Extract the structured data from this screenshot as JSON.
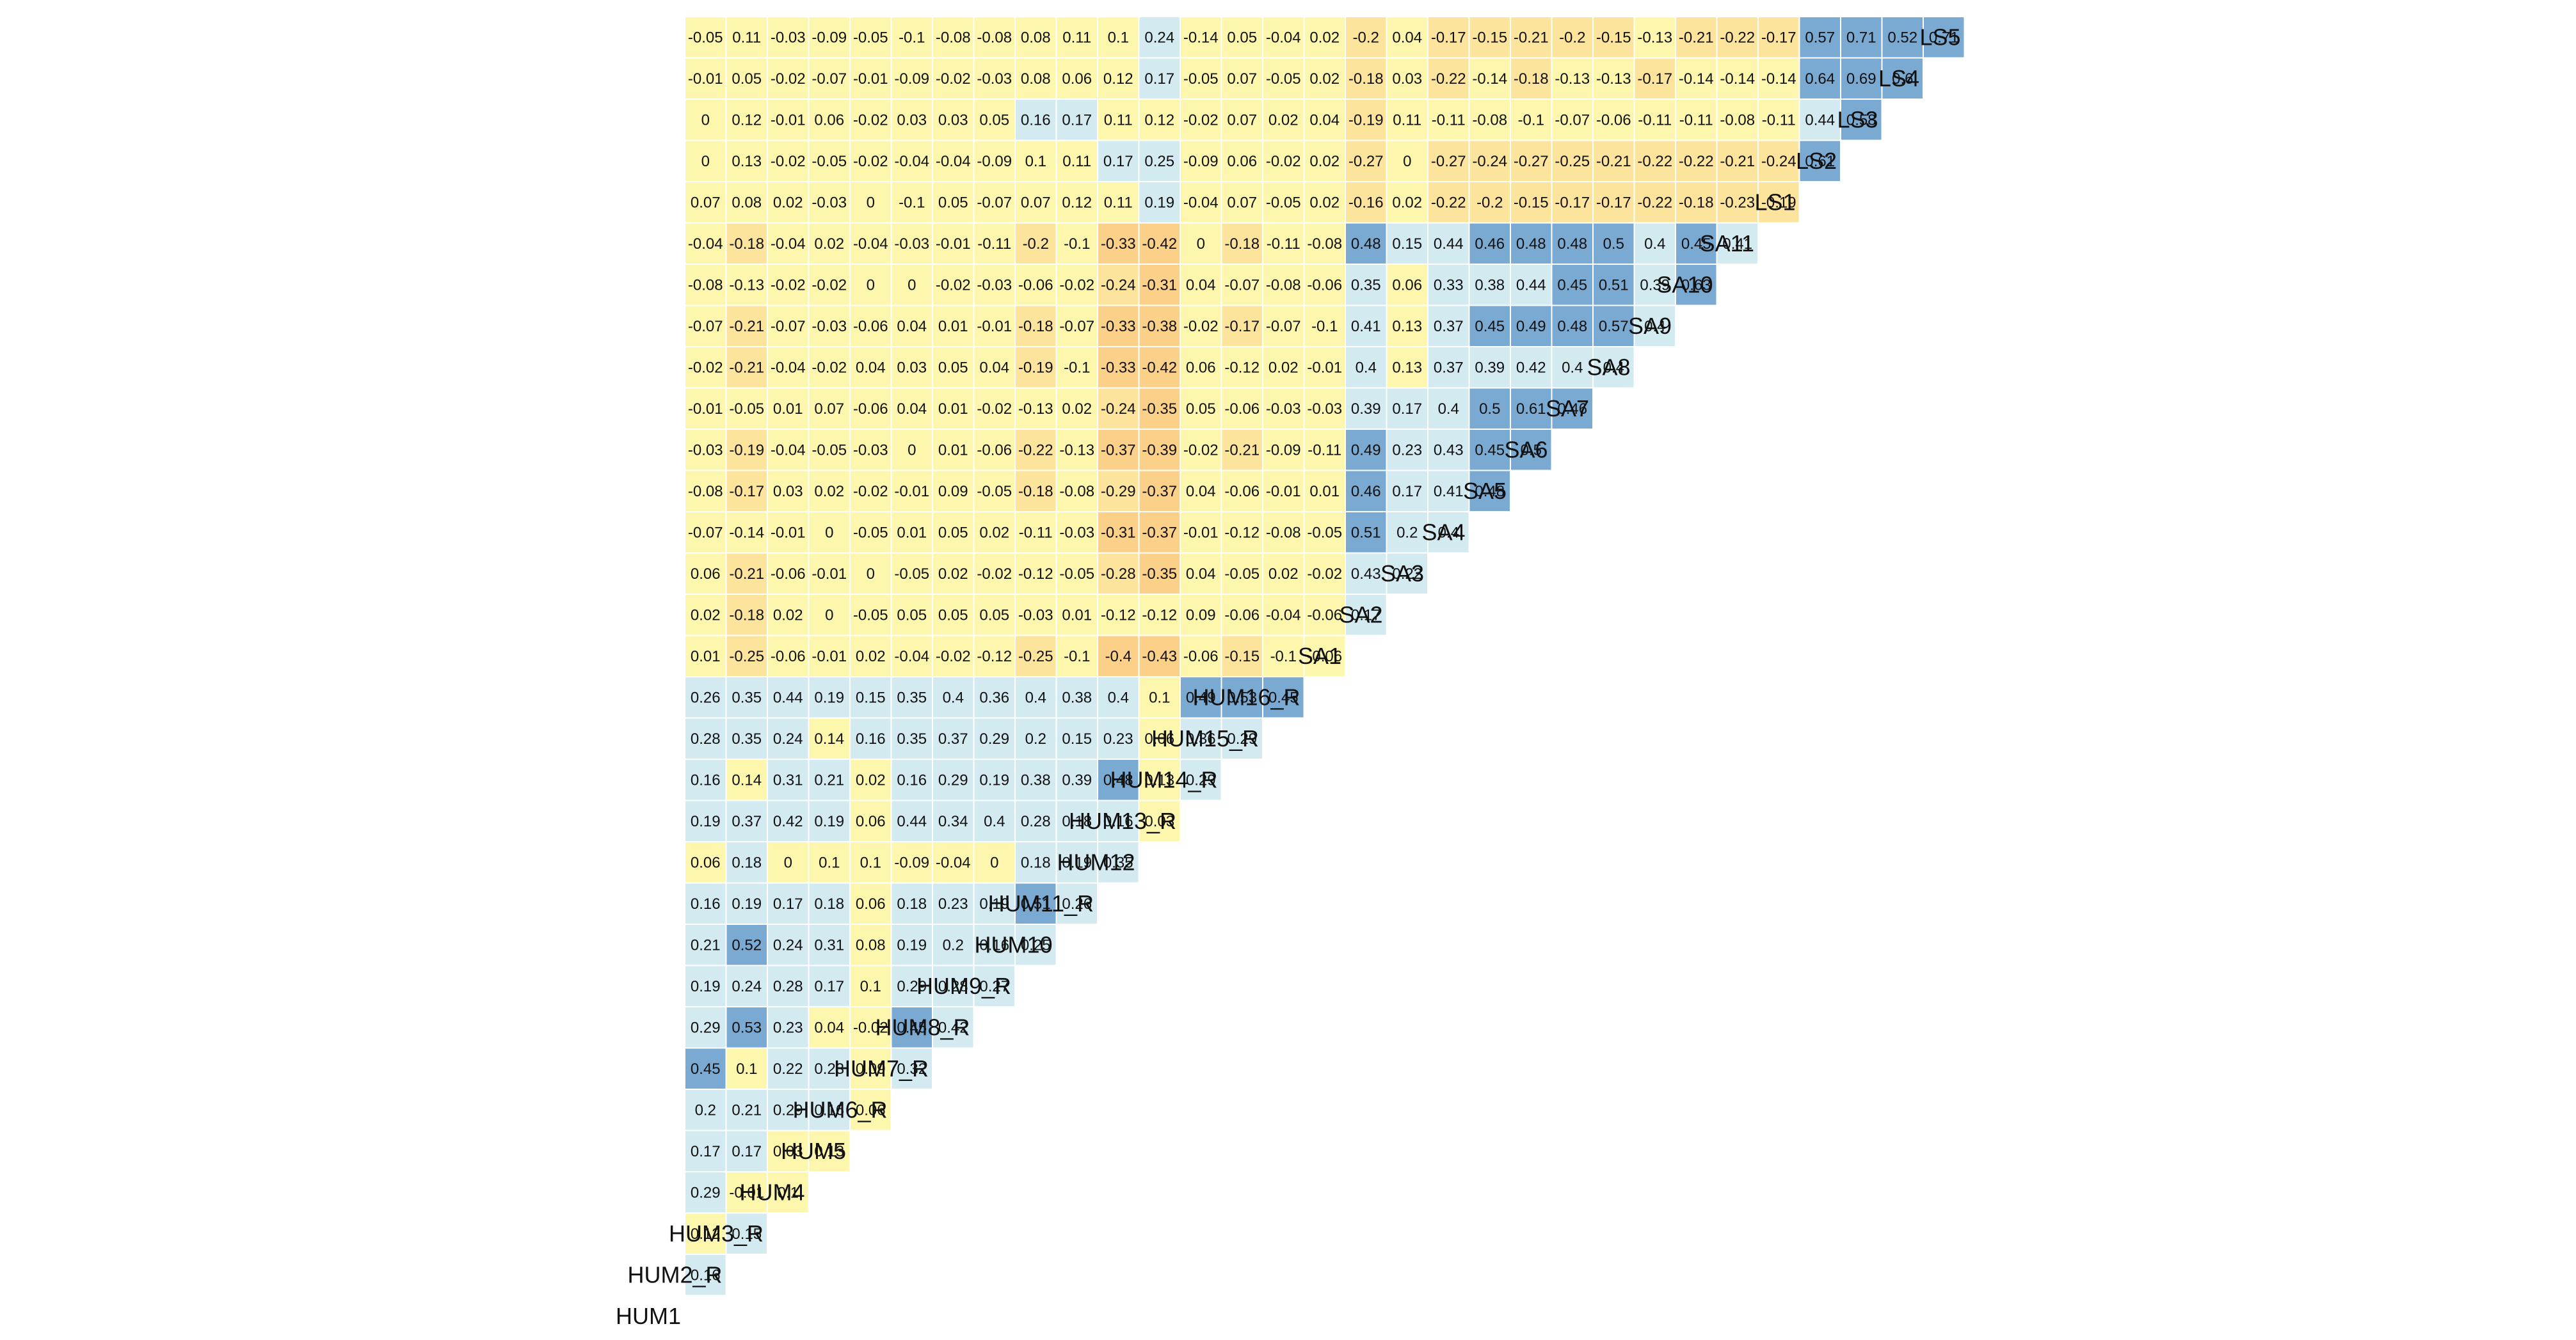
{
  "chart_data": {
    "type": "heatmap",
    "variables": [
      "HUM1",
      "HUM2_R",
      "HUM3_R",
      "HUM4",
      "HUM5",
      "HUM6_R",
      "HUM7_R",
      "HUM8_R",
      "HUM9_R",
      "HUM10",
      "HUM11_R",
      "HUM12",
      "HUM13_R",
      "HUM14_R",
      "HUM15_R",
      "HUM16_R",
      "SA1",
      "SA2",
      "SA3",
      "SA4",
      "SA5",
      "SA6",
      "SA7",
      "SA8",
      "SA9",
      "SA10",
      "SA11",
      "LS1",
      "LS2",
      "LS3",
      "LS4",
      "LS5"
    ],
    "lower_triangle": [
      [],
      [
        0.16
      ],
      [
        0.12,
        0.15
      ],
      [
        0.29,
        -0.01,
        0.1
      ],
      [
        0.17,
        0.17,
        0.03,
        0.13
      ],
      [
        0.2,
        0.21,
        0.29,
        0.16,
        0.06
      ],
      [
        0.45,
        0.1,
        0.22,
        0.23,
        0.09,
        0.32
      ],
      [
        0.29,
        0.53,
        0.23,
        0.04,
        -0.02,
        0.45,
        0.42
      ],
      [
        0.19,
        0.24,
        0.28,
        0.17,
        0.1,
        0.29,
        0.28,
        0.27
      ],
      [
        0.21,
        0.52,
        0.24,
        0.31,
        0.08,
        0.19,
        0.2,
        0.16,
        0.25
      ],
      [
        0.16,
        0.19,
        0.17,
        0.18,
        0.06,
        0.18,
        0.23,
        0.19,
        0.51,
        0.26
      ],
      [
        0.06,
        0.18,
        0,
        0.1,
        0.1,
        -0.09,
        -0.04,
        0,
        0.18,
        0.19,
        0.35
      ],
      [
        0.19,
        0.37,
        0.42,
        0.19,
        0.06,
        0.44,
        0.34,
        0.4,
        0.28,
        0.18,
        0.16,
        0.03
      ],
      [
        0.16,
        0.14,
        0.31,
        0.21,
        0.02,
        0.16,
        0.29,
        0.19,
        0.38,
        0.39,
        0.48,
        0.13,
        0.29
      ],
      [
        0.28,
        0.35,
        0.24,
        0.14,
        0.16,
        0.35,
        0.37,
        0.29,
        0.2,
        0.15,
        0.23,
        0.06,
        0.36,
        0.29
      ],
      [
        0.26,
        0.35,
        0.44,
        0.19,
        0.15,
        0.35,
        0.4,
        0.36,
        0.4,
        0.38,
        0.4,
        0.1,
        0.49,
        0.53,
        0.45
      ],
      [
        0.01,
        -0.25,
        -0.06,
        -0.01,
        0.02,
        -0.04,
        -0.02,
        -0.12,
        -0.25,
        -0.1,
        -0.4,
        -0.43,
        -0.06,
        -0.15,
        -0.1,
        -0.06
      ],
      [
        0.02,
        -0.18,
        0.02,
        0,
        -0.05,
        0.05,
        0.05,
        0.05,
        -0.03,
        0.01,
        -0.12,
        -0.12,
        0.09,
        -0.06,
        -0.04,
        -0.06,
        0.17
      ],
      [
        0.06,
        -0.21,
        -0.06,
        -0.01,
        0,
        -0.05,
        0.02,
        -0.02,
        -0.12,
        -0.05,
        -0.28,
        -0.35,
        0.04,
        -0.05,
        0.02,
        -0.02,
        0.43,
        0.22
      ],
      [
        -0.07,
        -0.14,
        -0.01,
        0,
        -0.05,
        0.01,
        0.05,
        0.02,
        -0.11,
        -0.03,
        -0.31,
        -0.37,
        -0.01,
        -0.12,
        -0.08,
        -0.05,
        0.51,
        0.2,
        0.4
      ],
      [
        -0.08,
        -0.17,
        0.03,
        0.02,
        -0.02,
        -0.01,
        0.09,
        -0.05,
        -0.18,
        -0.08,
        -0.29,
        -0.37,
        0.04,
        -0.06,
        -0.01,
        0.01,
        0.46,
        0.17,
        0.41,
        0.48
      ],
      [
        -0.03,
        -0.19,
        -0.04,
        -0.05,
        -0.03,
        0,
        0.01,
        -0.06,
        -0.22,
        -0.13,
        -0.37,
        -0.39,
        -0.02,
        -0.21,
        -0.09,
        -0.11,
        0.49,
        0.23,
        0.43,
        0.45,
        0.5
      ],
      [
        -0.01,
        -0.05,
        0.01,
        0.07,
        -0.06,
        0.04,
        0.01,
        -0.02,
        -0.13,
        0.02,
        -0.24,
        -0.35,
        0.05,
        -0.06,
        -0.03,
        -0.03,
        0.39,
        0.17,
        0.4,
        0.5,
        0.61,
        0.46
      ],
      [
        -0.02,
        -0.21,
        -0.04,
        -0.02,
        0.04,
        0.03,
        0.05,
        0.04,
        -0.19,
        -0.1,
        -0.33,
        -0.42,
        0.06,
        -0.12,
        0.02,
        -0.01,
        0.4,
        0.13,
        0.37,
        0.39,
        0.42,
        0.4,
        0.4
      ],
      [
        -0.07,
        -0.21,
        -0.07,
        -0.03,
        -0.06,
        0.04,
        0.01,
        -0.01,
        -0.18,
        -0.07,
        -0.33,
        -0.38,
        -0.02,
        -0.17,
        -0.07,
        -0.1,
        0.41,
        0.13,
        0.37,
        0.45,
        0.49,
        0.48,
        0.57,
        0.4
      ],
      [
        -0.08,
        -0.13,
        -0.02,
        -0.02,
        0,
        0,
        -0.02,
        -0.03,
        -0.06,
        -0.02,
        -0.24,
        -0.31,
        0.04,
        -0.07,
        -0.08,
        -0.06,
        0.35,
        0.06,
        0.33,
        0.38,
        0.44,
        0.45,
        0.51,
        0.39,
        0.63
      ],
      [
        -0.04,
        -0.18,
        -0.04,
        0.02,
        -0.04,
        -0.03,
        -0.01,
        -0.11,
        -0.2,
        -0.1,
        -0.33,
        -0.42,
        0,
        -0.18,
        -0.11,
        -0.08,
        0.48,
        0.15,
        0.44,
        0.46,
        0.48,
        0.48,
        0.5,
        0.4,
        0.45,
        0.41
      ],
      [
        0.07,
        0.08,
        0.02,
        -0.03,
        0,
        -0.1,
        0.05,
        -0.07,
        0.07,
        0.12,
        0.11,
        0.19,
        -0.04,
        0.07,
        -0.05,
        0.02,
        -0.16,
        0.02,
        -0.22,
        -0.2,
        -0.15,
        -0.17,
        -0.17,
        -0.22,
        -0.18,
        -0.23,
        -0.19
      ],
      [
        0,
        0.13,
        -0.02,
        -0.05,
        -0.02,
        -0.04,
        -0.04,
        -0.09,
        0.1,
        0.11,
        0.17,
        0.25,
        -0.09,
        0.06,
        -0.02,
        0.02,
        -0.27,
        0,
        -0.27,
        -0.24,
        -0.27,
        -0.25,
        -0.21,
        -0.22,
        -0.22,
        -0.21,
        -0.24,
        0.61
      ],
      [
        0,
        0.12,
        -0.01,
        0.06,
        -0.02,
        0.03,
        0.03,
        0.05,
        0.16,
        0.17,
        0.11,
        0.12,
        -0.02,
        0.07,
        0.02,
        0.04,
        -0.19,
        0.11,
        -0.11,
        -0.08,
        -0.1,
        -0.07,
        -0.06,
        -0.11,
        -0.11,
        -0.08,
        -0.11,
        0.44,
        0.58
      ],
      [
        -0.01,
        0.05,
        -0.02,
        -0.07,
        -0.01,
        -0.09,
        -0.02,
        -0.03,
        0.08,
        0.06,
        0.12,
        0.17,
        -0.05,
        0.07,
        -0.05,
        0.02,
        -0.18,
        0.03,
        -0.22,
        -0.14,
        -0.18,
        -0.13,
        -0.13,
        -0.17,
        -0.14,
        -0.14,
        -0.14,
        0.64,
        0.69,
        0.6
      ],
      [
        -0.05,
        0.11,
        -0.03,
        -0.09,
        -0.05,
        -0.1,
        -0.08,
        -0.08,
        0.08,
        0.11,
        0.1,
        0.24,
        -0.14,
        0.05,
        -0.04,
        0.02,
        -0.2,
        0.04,
        -0.17,
        -0.15,
        -0.21,
        -0.2,
        -0.15,
        -0.13,
        -0.21,
        -0.22,
        -0.17,
        0.57,
        0.71,
        0.52,
        0.71
      ]
    ],
    "colors": {
      "strong_positive": "#7aa9d2",
      "moderate_positive": "#d3eaf1",
      "weak": "#fdf7ae",
      "negative": "#fce49c",
      "strong_negative": "#fbd189"
    }
  }
}
